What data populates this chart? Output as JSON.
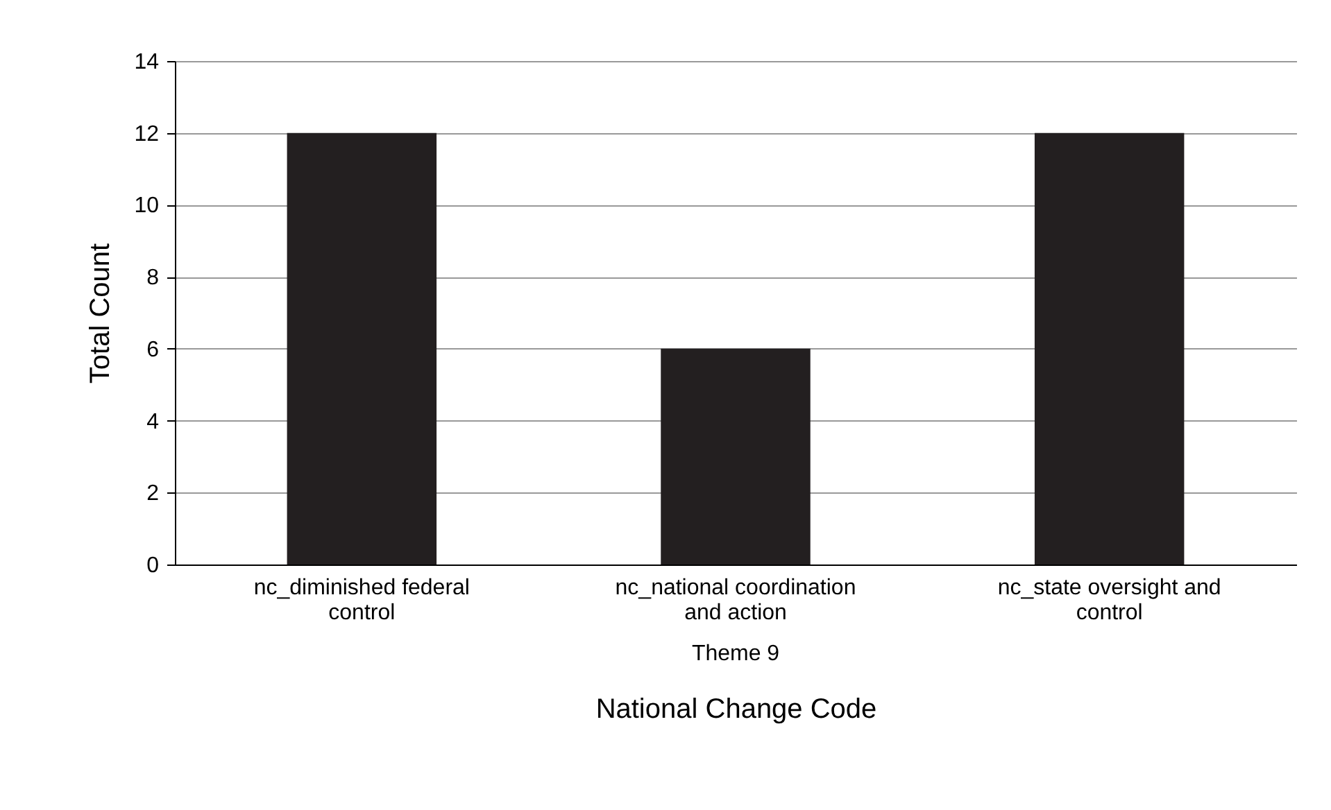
{
  "chart_data": {
    "type": "bar",
    "xlabel": "National Change Code",
    "ylabel": "Total Count",
    "categories": [
      "nc_diminished federal control",
      "nc_national coordination and action",
      "nc_state oversight and control"
    ],
    "values": [
      12,
      6,
      12
    ],
    "color": "#231f20",
    "ylim": [
      0,
      14
    ],
    "yticks": [
      0,
      2,
      4,
      6,
      8,
      10,
      12,
      14
    ],
    "grid": "y",
    "annotations": [
      "Theme 9"
    ]
  }
}
